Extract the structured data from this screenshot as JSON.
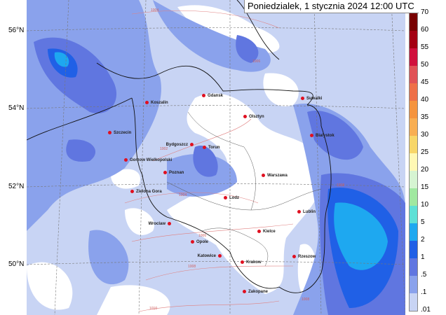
{
  "title": "Poniedzialek, 1 stycznia 2024 12:00 UTC",
  "latitude_labels": [
    "56°N",
    "54°N",
    "52°N",
    "50°N"
  ],
  "colorbar": {
    "labels": [
      "70",
      "60",
      "55",
      "50",
      "45",
      "40",
      "35",
      "30",
      "25",
      "20",
      "15",
      "10",
      "5",
      "2",
      "1",
      ".5",
      ".1",
      ".01"
    ],
    "colors": [
      "#780000",
      "#a40012",
      "#d0103c",
      "#e05256",
      "#ee7048",
      "#f5943e",
      "#f8ae52",
      "#f7d668",
      "#fff8b4",
      "#d6f4d2",
      "#a0e8a0",
      "#5ee0d6",
      "#1ea8f0",
      "#2060e6",
      "#6076e0",
      "#8aa2ec",
      "#c8d4f4"
    ]
  },
  "cities": [
    {
      "name": "Gdansk"
    },
    {
      "name": "Koszalin"
    },
    {
      "name": "Suwalki"
    },
    {
      "name": "Olsztyn"
    },
    {
      "name": "Szczecin"
    },
    {
      "name": "Bialystok"
    },
    {
      "name": "Bydgoszcz"
    },
    {
      "name": "Torun"
    },
    {
      "name": "Gorzow Wielkopolski"
    },
    {
      "name": "Poznan"
    },
    {
      "name": "Warszawa"
    },
    {
      "name": "Zielona Gora"
    },
    {
      "name": "Lodz"
    },
    {
      "name": "Lublin"
    },
    {
      "name": "Wroclaw"
    },
    {
      "name": "Kielce"
    },
    {
      "name": "Opole"
    },
    {
      "name": "Katowice"
    },
    {
      "name": "Rzeszow"
    },
    {
      "name": "Krakow"
    },
    {
      "name": "Zakopane"
    }
  ],
  "isobar_labels": [
    "1004",
    "1006",
    "1002",
    "1004",
    "1006",
    "1008",
    "1008",
    "1010",
    "1008"
  ],
  "legend_colors": {
    "background": "#c8d4f4",
    "light": "#8aa2ec",
    "medium": "#6076e0",
    "strong": "#2060e6",
    "cyan": "#1ea8f0",
    "city_marker": "#e01020"
  }
}
